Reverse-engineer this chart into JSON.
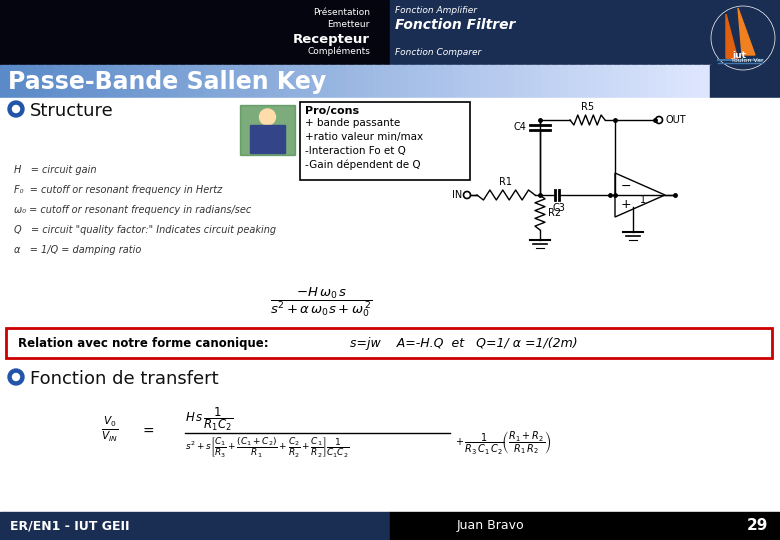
{
  "header_left_bg": "#050510",
  "header_right_bg": "#1a2d52",
  "nav_items_left": [
    "Présentation",
    "Emetteur",
    "Recepteur",
    "Compléments"
  ],
  "nav_items_left_bold": [
    false,
    false,
    true,
    false
  ],
  "nav_items_right": [
    "Fonction Amplifier",
    "Fonction Filtrer",
    "Fonction Comparer"
  ],
  "nav_items_right_bold": [
    false,
    true,
    false
  ],
  "title_text": "Passe-Bande Sallen Key",
  "title_color": "#ffffff",
  "section1": "Structure",
  "bullet_color": "#2255aa",
  "procons_title": "Pro/cons",
  "procons_items": [
    "+ bande passante",
    "+ratio valeur min/max",
    "-Interaction Fo et Q",
    "-Gain dépendent de Q"
  ],
  "param_lines": [
    "H   = circuit gain",
    "F₀  = cutoff or resonant frequency in Hertz",
    "ω₀ = cutoff or resonant frequency in radians/sec",
    "Q   = circuit \"quality factor:\" Indicates circuit peaking",
    "α   = 1/Q = damping ratio"
  ],
  "canon_text": "Relation avec notre forme canonique:",
  "canon_formula": "s=jw    A=-H.Q  et   Q=1/ α =1/(2m)",
  "canon_box_color": "#cc0000",
  "section2": "Fonction de transfert",
  "footer_left_bg": "#1a2d52",
  "footer_left_text": "ER/EN1 - IUT GEII",
  "footer_mid_text": "Juan Bravo",
  "footer_right_text": "29",
  "footer_right_bg": "#000000",
  "main_bg": "#f0f0f8"
}
